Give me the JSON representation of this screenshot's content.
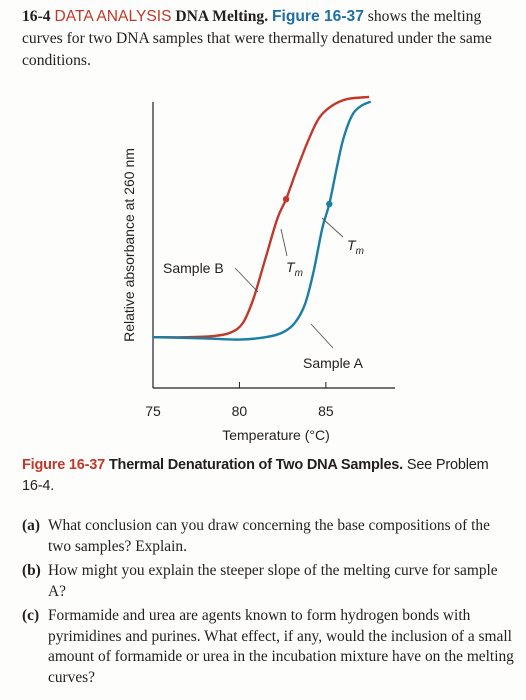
{
  "problem": {
    "number": "16-4",
    "topic": "DATA ANALYSIS",
    "title": "DNA Melting.",
    "figure_ref": "Figure 16-37",
    "intro_rest": "shows the melting curves for two DNA samples that were thermally denatured under the same conditions."
  },
  "caption": {
    "label": "Figure 16-37",
    "title": "Thermal Denaturation of Two DNA Samples.",
    "text": "See Problem 16-4."
  },
  "questions": [
    {
      "label": "(a)",
      "text": "What conclusion can you draw concerning the base compositions of the two samples? Explain."
    },
    {
      "label": "(b)",
      "text": "How might you explain the steeper slope of the melting curve for sample A?"
    },
    {
      "label": "(c)",
      "text": "Formamide and urea are agents known to form hydrogen bonds with pyrimidines and purines. What effect, if any, would the inclusion of a small amount of formamide or urea in the incubation mixture have on the melting curves?"
    }
  ],
  "chart_data": {
    "type": "line",
    "xlabel": "Temperature (°C)",
    "ylabel": "Relative absorbance at 260 nm",
    "x_ticks": [
      "75",
      "80",
      "85"
    ],
    "xlim": [
      75,
      89
    ],
    "colors": {
      "Sample B": "#c0392b",
      "Sample A": "#1b7ea5"
    },
    "series": [
      {
        "name": "Sample B",
        "tm_label": "Tm",
        "tm": 82.7,
        "points": [
          [
            75,
            0.02
          ],
          [
            77,
            0.02
          ],
          [
            78.5,
            0.025
          ],
          [
            79.5,
            0.04
          ],
          [
            80.2,
            0.08
          ],
          [
            80.8,
            0.18
          ],
          [
            81.5,
            0.35
          ],
          [
            82.2,
            0.52
          ],
          [
            82.7,
            0.6
          ],
          [
            83.3,
            0.72
          ],
          [
            84,
            0.85
          ],
          [
            84.6,
            0.94
          ],
          [
            85.3,
            0.99
          ],
          [
            86.2,
            1.02
          ],
          [
            87.5,
            1.03
          ]
        ]
      },
      {
        "name": "Sample A",
        "tm_label": "Tm",
        "tm": 85.2,
        "points": [
          [
            75,
            0.02
          ],
          [
            78,
            0.015
          ],
          [
            80,
            0.01
          ],
          [
            81.5,
            0.02
          ],
          [
            82.5,
            0.04
          ],
          [
            83.2,
            0.08
          ],
          [
            83.8,
            0.16
          ],
          [
            84.3,
            0.3
          ],
          [
            84.8,
            0.48
          ],
          [
            85.2,
            0.58
          ],
          [
            85.6,
            0.72
          ],
          [
            86,
            0.85
          ],
          [
            86.5,
            0.95
          ],
          [
            87,
            0.99
          ],
          [
            87.6,
            1.01
          ]
        ]
      }
    ]
  }
}
